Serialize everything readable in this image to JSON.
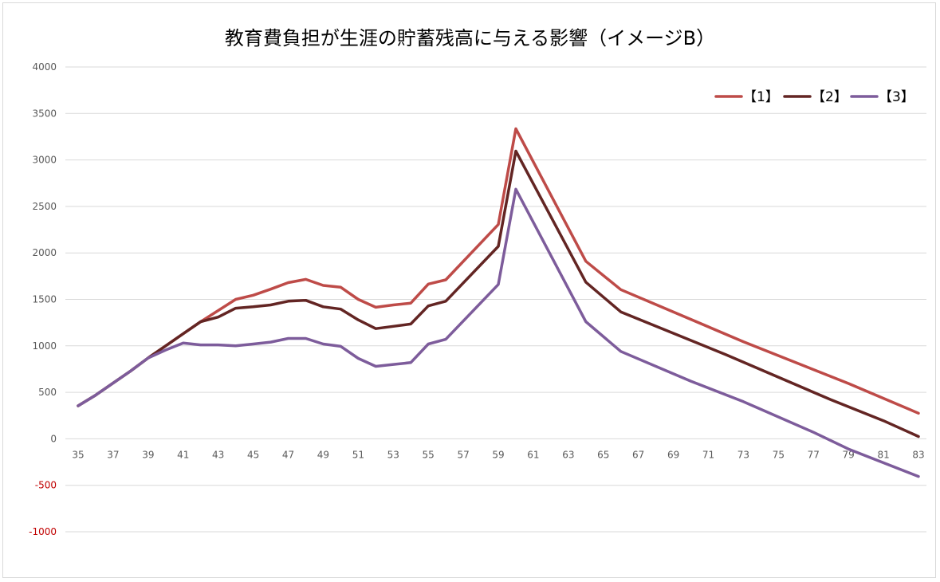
{
  "chart_data": {
    "type": "line",
    "title": "教育費負担が生涯の貯蓄残高に与える影響（イメージB）",
    "xlabel": "",
    "ylabel": "",
    "ylim": [
      -1000,
      4000
    ],
    "yticks": [
      4000,
      3500,
      3000,
      2500,
      2000,
      1500,
      1000,
      500,
      0,
      -500,
      -1000
    ],
    "negative_tick_color": "#c00000",
    "xticks": [
      35,
      37,
      39,
      41,
      43,
      45,
      47,
      49,
      51,
      53,
      55,
      57,
      59,
      61,
      63,
      65,
      67,
      69,
      71,
      73,
      75,
      77,
      79,
      81,
      83
    ],
    "xlim": [
      35,
      83
    ],
    "grid": true,
    "legend_position": "top-right",
    "series": [
      {
        "name": "【1】",
        "color": "#be4b48",
        "points": [
          [
            35,
            355
          ],
          [
            36,
            470
          ],
          [
            37,
            600
          ],
          [
            38,
            730
          ],
          [
            39,
            870
          ],
          [
            40,
            1000
          ],
          [
            41,
            1130
          ],
          [
            42,
            1260
          ],
          [
            43,
            1380
          ],
          [
            44,
            1500
          ],
          [
            45,
            1545
          ],
          [
            46,
            1610
          ],
          [
            47,
            1680
          ],
          [
            48,
            1715
          ],
          [
            49,
            1650
          ],
          [
            50,
            1630
          ],
          [
            51,
            1500
          ],
          [
            52,
            1415
          ],
          [
            53,
            1440
          ],
          [
            54,
            1460
          ],
          [
            55,
            1665
          ],
          [
            56,
            1710
          ],
          [
            59,
            2305
          ],
          [
            60,
            3335
          ],
          [
            64,
            1910
          ],
          [
            66,
            1605
          ],
          [
            73,
            1045
          ],
          [
            79,
            595
          ],
          [
            83,
            275
          ]
        ]
      },
      {
        "name": "【2】",
        "color": "#632523",
        "points": [
          [
            35,
            355
          ],
          [
            36,
            470
          ],
          [
            37,
            600
          ],
          [
            38,
            730
          ],
          [
            39,
            870
          ],
          [
            40,
            1000
          ],
          [
            41,
            1130
          ],
          [
            42,
            1260
          ],
          [
            43,
            1310
          ],
          [
            44,
            1405
          ],
          [
            45,
            1420
          ],
          [
            46,
            1440
          ],
          [
            47,
            1480
          ],
          [
            48,
            1490
          ],
          [
            49,
            1420
          ],
          [
            50,
            1395
          ],
          [
            51,
            1280
          ],
          [
            52,
            1185
          ],
          [
            53,
            1210
          ],
          [
            54,
            1235
          ],
          [
            55,
            1430
          ],
          [
            56,
            1480
          ],
          [
            59,
            2070
          ],
          [
            60,
            3095
          ],
          [
            64,
            1685
          ],
          [
            66,
            1365
          ],
          [
            72,
            905
          ],
          [
            78,
            420
          ],
          [
            81,
            195
          ],
          [
            83,
            25
          ]
        ]
      },
      {
        "name": "【3】",
        "color": "#7d5c9b",
        "points": [
          [
            35,
            355
          ],
          [
            36,
            470
          ],
          [
            37,
            600
          ],
          [
            38,
            730
          ],
          [
            39,
            870
          ],
          [
            40,
            955
          ],
          [
            41,
            1030
          ],
          [
            42,
            1010
          ],
          [
            43,
            1010
          ],
          [
            44,
            1000
          ],
          [
            45,
            1020
          ],
          [
            46,
            1040
          ],
          [
            47,
            1080
          ],
          [
            48,
            1080
          ],
          [
            49,
            1020
          ],
          [
            50,
            995
          ],
          [
            51,
            865
          ],
          [
            52,
            780
          ],
          [
            53,
            800
          ],
          [
            54,
            820
          ],
          [
            55,
            1020
          ],
          [
            56,
            1070
          ],
          [
            59,
            1660
          ],
          [
            60,
            2685
          ],
          [
            64,
            1260
          ],
          [
            66,
            940
          ],
          [
            70,
            620
          ],
          [
            73,
            400
          ],
          [
            77,
            70
          ],
          [
            79,
            -110
          ],
          [
            83,
            -405
          ]
        ]
      }
    ]
  }
}
